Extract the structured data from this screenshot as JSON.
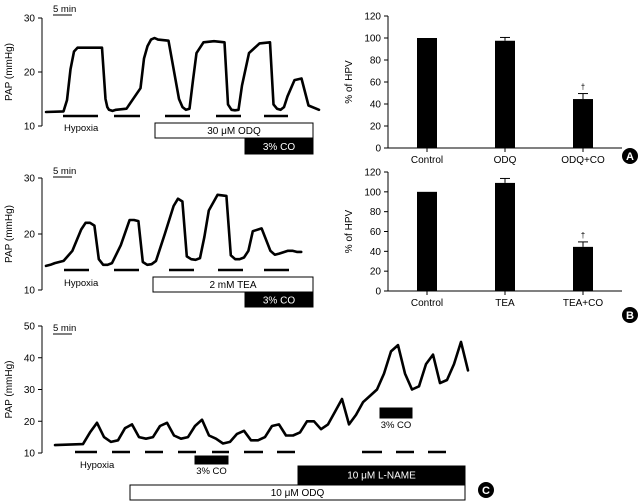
{
  "colors": {
    "ink": "#000000",
    "paper": "#ffffff"
  },
  "panel_labels": [
    "A",
    "B",
    "C"
  ],
  "chart_data": [
    {
      "id": "trace-a",
      "type": "line",
      "ylabel": "PAP (mmHg)",
      "ylim": [
        10,
        30
      ],
      "yticks": [
        "10",
        "20",
        "30"
      ],
      "scalebar_label": "5 min",
      "series": [
        {
          "x": [
            0,
            5,
            6,
            7,
            8,
            9,
            10,
            12,
            15,
            16,
            17,
            17.5,
            18,
            19,
            20,
            23,
            27,
            28,
            29,
            30,
            31,
            32,
            35,
            38,
            39,
            40,
            41,
            42,
            43,
            45,
            48,
            51,
            52,
            53,
            54,
            55,
            56,
            58,
            61,
            64,
            65,
            66,
            67,
            68,
            69,
            71,
            73,
            75,
            78
          ],
          "values": [
            12.6,
            12.7,
            14.8,
            20.5,
            23.8,
            24.5,
            24.5,
            24.5,
            24.5,
            24.5,
            15,
            13.5,
            13,
            12.8,
            13,
            13.2,
            17,
            22.5,
            24.8,
            26,
            26.3,
            26,
            25.8,
            15,
            13.5,
            13,
            13.2,
            18.5,
            23.5,
            25.5,
            25.7,
            25.5,
            14,
            13,
            12.9,
            13,
            17.5,
            23.5,
            25.3,
            25.5,
            14,
            13.2,
            13,
            13.5,
            15.5,
            18.5,
            18.8,
            13.8,
            13
          ]
        }
      ],
      "hypoxia_x": [
        [
          2.5,
          8.5
        ],
        [
          11,
          17
        ],
        [
          21.5,
          27.5
        ],
        [
          29,
          35
        ],
        [
          35.5,
          41
        ]
      ],
      "hypoxia_label": "Hypoxia",
      "drug_bars": [
        {
          "label": "30 μM ODQ",
          "range": [
            21,
            63
          ],
          "fill": "white"
        },
        {
          "label": "3% CO",
          "range": [
            46,
            63
          ],
          "fill": "black"
        }
      ]
    },
    {
      "id": "bars-a",
      "type": "bar",
      "ylabel": "% of HPV",
      "ylim": [
        0,
        120
      ],
      "yticks": [
        "0",
        "20",
        "40",
        "60",
        "80",
        "100",
        "120"
      ],
      "categories": [
        "Control",
        "ODQ",
        "ODQ+CO"
      ],
      "values": [
        100,
        97.5,
        44.5
      ],
      "errors": [
        0,
        3,
        5
      ],
      "annotations": [
        "",
        "",
        "†"
      ]
    },
    {
      "id": "trace-b",
      "type": "line",
      "ylabel": "PAP (mmHg)",
      "ylim": [
        10,
        30
      ],
      "yticks": [
        "10",
        "20",
        "30"
      ],
      "scalebar_label": "5 min",
      "series": [
        {
          "x": [
            0,
            1,
            2,
            3,
            4,
            6,
            8,
            9,
            10,
            11,
            12,
            13,
            14,
            15,
            17,
            19,
            20,
            21,
            22,
            23,
            24,
            25,
            27,
            29,
            30,
            31,
            32,
            33,
            34,
            35,
            36,
            37,
            39,
            41,
            42,
            43,
            44,
            45,
            46,
            47,
            49,
            51,
            52,
            53,
            55,
            56,
            57,
            58
          ],
          "values": [
            14.3,
            14.5,
            14.8,
            15,
            15.2,
            17,
            20.8,
            22,
            22,
            21.5,
            15.5,
            14.5,
            14.5,
            14.8,
            18,
            22.5,
            22.5,
            22.3,
            15,
            14.5,
            14.6,
            15.2,
            20,
            25,
            26.3,
            25.8,
            16,
            15.5,
            15.4,
            15.7,
            19.5,
            24.2,
            27,
            26.8,
            16.2,
            15.5,
            15.5,
            15.8,
            17,
            20.5,
            21,
            17,
            16.3,
            16.5,
            17,
            17,
            16.8,
            16.8
          ]
        }
      ],
      "hypoxia_x": [
        [
          2.5,
          8.5
        ],
        [
          11,
          17
        ],
        [
          21.5,
          27.5
        ],
        [
          29,
          35
        ],
        [
          35.5,
          41
        ]
      ],
      "hypoxia_label": "Hypoxia",
      "drug_bars": [
        {
          "label": "2 mM TEA",
          "range": [
            21,
            63
          ],
          "fill": "white"
        },
        {
          "label": "3% CO",
          "range": [
            46,
            63
          ],
          "fill": "black"
        }
      ]
    },
    {
      "id": "bars-b",
      "type": "bar",
      "ylabel": "% of HPV",
      "ylim": [
        0,
        120
      ],
      "yticks": [
        "0",
        "20",
        "40",
        "60",
        "80",
        "100",
        "120"
      ],
      "categories": [
        "Control",
        "TEA",
        "TEA+CO"
      ],
      "values": [
        100,
        109,
        44.5
      ],
      "errors": [
        0,
        4.5,
        5
      ],
      "annotations": [
        "",
        "",
        "†"
      ]
    },
    {
      "id": "trace-c",
      "type": "line",
      "ylabel": "PAP (mmHg)",
      "ylim": [
        10,
        50
      ],
      "yticks": [
        "10",
        "20",
        "30",
        "40",
        "50"
      ],
      "scalebar_label": "5 min",
      "series": [
        {
          "x": [
            0,
            4,
            5,
            6,
            7,
            8,
            9,
            10,
            11,
            12,
            13,
            14,
            15,
            16,
            17,
            18,
            19,
            20,
            21,
            22,
            23,
            24,
            25,
            26,
            27,
            28,
            29,
            30,
            31,
            32,
            33,
            34,
            35,
            36,
            37,
            38,
            39,
            40,
            41,
            42,
            43,
            44,
            45,
            46,
            47,
            48,
            49,
            50,
            51,
            52,
            53,
            54,
            55,
            56,
            57,
            58,
            59
          ],
          "values": [
            12.5,
            12.8,
            16.5,
            19.5,
            15,
            13.5,
            14,
            17.8,
            19,
            15,
            14.5,
            15,
            18.5,
            19.5,
            15.5,
            14.5,
            15,
            18.5,
            20.5,
            15.5,
            14.5,
            13,
            13.5,
            16,
            17,
            14,
            14,
            15,
            18.5,
            19,
            15.5,
            15.5,
            16.5,
            20,
            20,
            17.5,
            19,
            23,
            27,
            19,
            22,
            26,
            28,
            30,
            35,
            42,
            44,
            35,
            30,
            31,
            38,
            41,
            32,
            33,
            38,
            45,
            36
          ]
        }
      ],
      "hypoxia_x": [
        [
          2.5,
          6
        ],
        [
          7.5,
          11
        ],
        [
          12.5,
          16
        ],
        [
          17.5,
          21
        ],
        [
          22.5,
          26
        ],
        [
          27.5,
          31
        ],
        [
          32.5,
          36
        ],
        [
          39.5,
          43
        ],
        [
          44.5,
          48
        ],
        [
          49.5,
          52
        ],
        [
          53,
          56
        ]
      ],
      "hypoxia_label": "Hypoxia",
      "drug_bars": [
        {
          "label": "3% CO",
          "range": [
            17,
            22
          ],
          "fill": "black"
        },
        {
          "label": "3% CO",
          "range": [
            45,
            49
          ],
          "fill": "black"
        },
        {
          "label": "10 μM L-NAME",
          "range": [
            30,
            59
          ],
          "fill": "black"
        },
        {
          "label": "10 μM ODQ",
          "range": [
            5,
            59
          ],
          "fill": "white"
        }
      ]
    }
  ]
}
